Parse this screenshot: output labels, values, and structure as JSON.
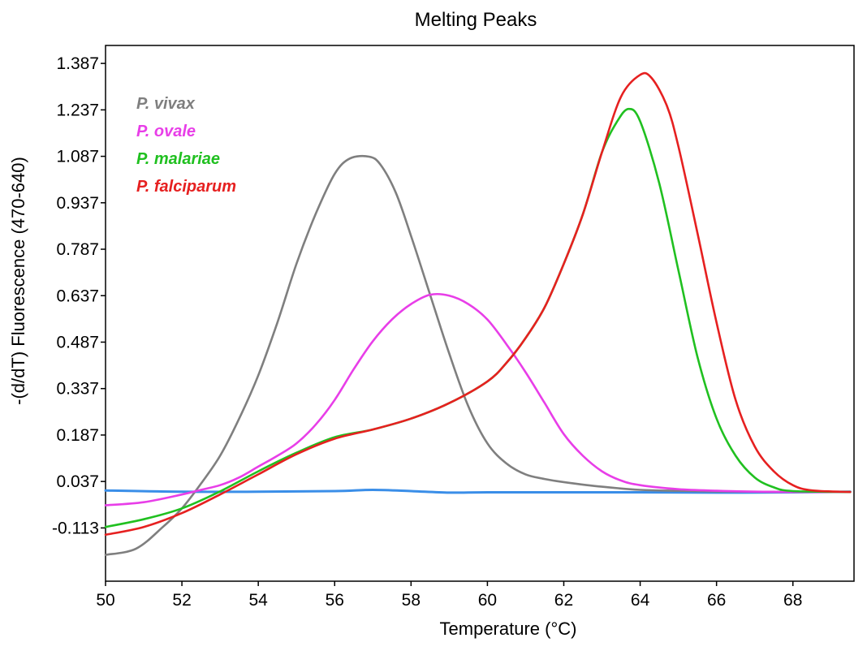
{
  "chart_data": {
    "type": "line",
    "title": "Melting Peaks",
    "xlabel": "Temperature (°C)",
    "ylabel": "-(d/dT) Fluorescence (470-640)",
    "xlim": [
      50,
      69.6
    ],
    "ylim": [
      -0.285,
      1.445
    ],
    "x_ticks": [
      "50",
      "52",
      "54",
      "56",
      "58",
      "60",
      "62",
      "64",
      "66",
      "68"
    ],
    "y_ticks": [
      "-0.113",
      "0.037",
      "0.187",
      "0.337",
      "0.487",
      "0.637",
      "0.787",
      "0.937",
      "1.087",
      "1.237",
      "1.387"
    ],
    "legend_position": "top-left",
    "grid": false,
    "series": [
      {
        "name": "P. vivax",
        "color": "#7f7f7f",
        "x": [
          50,
          50.8,
          51.5,
          52,
          52.5,
          53,
          53.5,
          54,
          54.5,
          55,
          55.5,
          56,
          56.4,
          56.9,
          57.2,
          57.6,
          58,
          58.5,
          59,
          59.5,
          60,
          60.5,
          61,
          61.5,
          62,
          63,
          64,
          65,
          66,
          68,
          69.5
        ],
        "y": [
          -0.2,
          -0.18,
          -0.11,
          -0.05,
          0.03,
          0.12,
          0.24,
          0.38,
          0.55,
          0.74,
          0.9,
          1.03,
          1.08,
          1.086,
          1.06,
          0.97,
          0.83,
          0.64,
          0.45,
          0.28,
          0.16,
          0.095,
          0.06,
          0.045,
          0.035,
          0.02,
          0.01,
          0.007,
          0.005,
          0.003,
          0.003
        ]
      },
      {
        "name": "P. ovale",
        "color": "#e83ee8",
        "x": [
          50,
          51,
          52,
          52.5,
          53,
          53.5,
          54,
          54.5,
          55,
          55.5,
          56,
          56.5,
          57,
          57.5,
          58,
          58.5,
          59,
          59.5,
          60,
          60.5,
          61,
          61.5,
          62,
          62.5,
          63,
          63.5,
          64,
          65,
          66,
          67,
          68,
          69.5
        ],
        "y": [
          -0.04,
          -0.03,
          -0.005,
          0.01,
          0.025,
          0.05,
          0.085,
          0.12,
          0.16,
          0.22,
          0.3,
          0.4,
          0.49,
          0.56,
          0.61,
          0.64,
          0.637,
          0.61,
          0.56,
          0.48,
          0.39,
          0.29,
          0.19,
          0.12,
          0.07,
          0.04,
          0.025,
          0.012,
          0.007,
          0.004,
          0.003,
          0.003
        ]
      },
      {
        "name": "P. malariae",
        "color": "#20c020",
        "x": [
          50,
          51,
          52,
          53,
          54,
          55,
          56,
          57,
          58,
          59,
          60,
          60.5,
          61,
          61.5,
          62,
          62.5,
          63,
          63.4,
          63.7,
          64,
          64.5,
          65,
          65.5,
          66,
          66.5,
          67,
          67.5,
          68,
          69.5
        ],
        "y": [
          -0.11,
          -0.085,
          -0.05,
          0.005,
          0.07,
          0.13,
          0.18,
          0.205,
          0.24,
          0.29,
          0.36,
          0.42,
          0.5,
          0.6,
          0.74,
          0.9,
          1.1,
          1.2,
          1.24,
          1.2,
          1.0,
          0.72,
          0.44,
          0.24,
          0.12,
          0.05,
          0.018,
          0.006,
          0.003
        ]
      },
      {
        "name": "P. falciparum",
        "color": "#e62020",
        "x": [
          50,
          51,
          52,
          53,
          54,
          55,
          56,
          57,
          58,
          59,
          60,
          60.5,
          61,
          61.5,
          62,
          62.5,
          63,
          63.5,
          64,
          64.3,
          64.7,
          65,
          65.5,
          66,
          66.5,
          67,
          67.5,
          68,
          68.5,
          69.5
        ],
        "y": [
          -0.135,
          -0.11,
          -0.065,
          -0.005,
          0.06,
          0.125,
          0.175,
          0.205,
          0.24,
          0.29,
          0.36,
          0.42,
          0.5,
          0.6,
          0.74,
          0.9,
          1.1,
          1.28,
          1.35,
          1.34,
          1.25,
          1.12,
          0.84,
          0.55,
          0.3,
          0.15,
          0.07,
          0.025,
          0.008,
          0.003
        ]
      },
      {
        "name": "",
        "color": "#3a8ee8",
        "x": [
          50,
          52,
          54,
          56,
          57,
          58,
          59,
          60,
          62,
          64,
          66,
          68,
          69.5
        ],
        "y": [
          0.008,
          0.004,
          0.004,
          0.006,
          0.01,
          0.006,
          0.001,
          0.002,
          0.002,
          0.002,
          0.001,
          0.002,
          0.004
        ]
      }
    ]
  }
}
